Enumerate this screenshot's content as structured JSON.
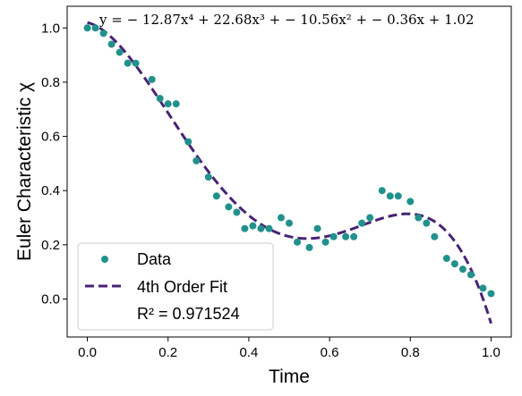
{
  "chart_data": {
    "type": "scatter",
    "xlabel": "Time",
    "ylabel": "Euler Characteristic χ",
    "xlim": [
      -0.05,
      1.05
    ],
    "ylim": [
      -0.14,
      1.08
    ],
    "xticks": [
      0.0,
      0.2,
      0.4,
      0.6,
      0.8,
      1.0
    ],
    "xtick_labels": [
      "0.0",
      "0.2",
      "0.4",
      "0.6",
      "0.8",
      "1.0"
    ],
    "yticks": [
      0.0,
      0.2,
      0.4,
      0.6,
      0.8,
      1.0
    ],
    "ytick_labels": [
      "0.0",
      "0.2",
      "0.4",
      "0.6",
      "0.8",
      "1.0"
    ],
    "grid": false,
    "legend_position": "lower-left",
    "annotation": "y = − 12.87x⁴ + 22.68x³ + − 10.56x² + − 0.36x + 1.02",
    "series": [
      {
        "name": "Data",
        "kind": "scatter",
        "color": "#21918c",
        "x": [
          0.0,
          0.02,
          0.04,
          0.06,
          0.08,
          0.1,
          0.12,
          0.16,
          0.18,
          0.2,
          0.22,
          0.25,
          0.27,
          0.3,
          0.32,
          0.35,
          0.37,
          0.39,
          0.41,
          0.43,
          0.45,
          0.48,
          0.5,
          0.52,
          0.55,
          0.57,
          0.59,
          0.61,
          0.64,
          0.66,
          0.68,
          0.7,
          0.73,
          0.75,
          0.77,
          0.8,
          0.82,
          0.84,
          0.86,
          0.89,
          0.91,
          0.93,
          0.95,
          0.98,
          1.0
        ],
        "y": [
          1.0,
          1.0,
          0.98,
          0.94,
          0.91,
          0.87,
          0.87,
          0.81,
          0.74,
          0.72,
          0.72,
          0.58,
          0.51,
          0.45,
          0.38,
          0.34,
          0.32,
          0.26,
          0.27,
          0.26,
          0.26,
          0.3,
          0.28,
          0.21,
          0.19,
          0.26,
          0.21,
          0.23,
          0.23,
          0.23,
          0.28,
          0.3,
          0.4,
          0.38,
          0.38,
          0.36,
          0.3,
          0.28,
          0.23,
          0.15,
          0.13,
          0.11,
          0.09,
          0.04,
          0.02
        ]
      },
      {
        "name": "4th Order Fit",
        "kind": "line",
        "style": "dashed",
        "color": "#482374",
        "coefficients": [
          -12.87,
          22.68,
          -10.56,
          -0.36,
          1.02
        ]
      }
    ],
    "legend": {
      "entries": [
        "Data",
        "4th Order Fit"
      ],
      "extra": "R² = 0.971524"
    }
  }
}
